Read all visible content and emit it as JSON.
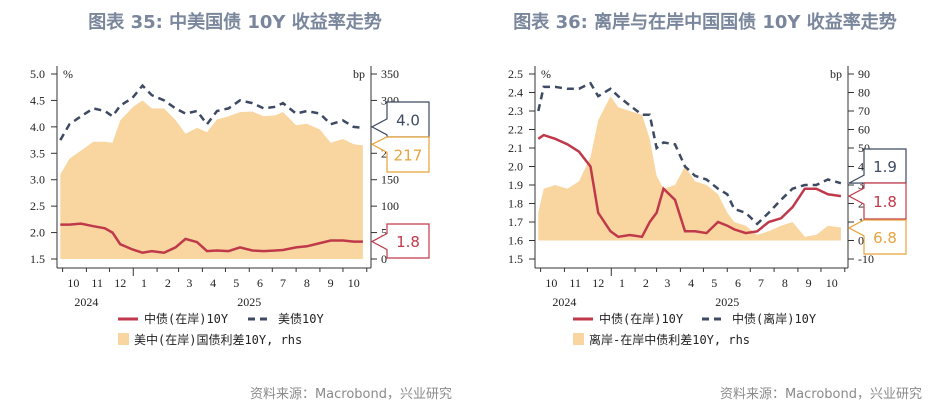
{
  "colors": {
    "onshore": "#c0394b",
    "us": "#3d4a63",
    "offshore": "#3d4a63",
    "spread": "#f9d6a0",
    "spread_label": "#e8a33c",
    "title": "#7a869c"
  },
  "panels": [
    {
      "title": "图表 35: 中美国债 10Y 收益率走势",
      "source": "资料来源：Macrobond，兴业研究"
    },
    {
      "title": "图表 36: 离岸与在岸中国国债 10Y 收益率走势",
      "source": "资料来源：Macrobond，兴业研究"
    }
  ],
  "chart_data": [
    {
      "type": "line+area",
      "left_unit": "%",
      "right_unit": "bp",
      "ylim_left": [
        1.33,
        5.0
      ],
      "yticks_left": [
        "5.0",
        "4.5",
        "4.0",
        "3.5",
        "3.0",
        "2.5",
        "2.0",
        "1.5"
      ],
      "ylim_right": [
        0,
        350
      ],
      "yticks_right": [
        "350",
        "300",
        "250",
        "200",
        "150",
        "100",
        "50",
        "0"
      ],
      "xlim": [
        "2024-09-25",
        "2025-10-31"
      ],
      "month_labels": [
        "10",
        "11",
        "12",
        "1",
        "2",
        "3",
        "4",
        "5",
        "6",
        "7",
        "8",
        "9",
        "10"
      ],
      "year_labels": [
        "2024",
        "2025"
      ],
      "x": [
        "2024-09-28",
        "2024-10-10",
        "2024-10-25",
        "2024-11-10",
        "2024-11-25",
        "2024-12-05",
        "2024-12-15",
        "2024-12-31",
        "2025-01-13",
        "2025-01-25",
        "2025-02-10",
        "2025-02-25",
        "2025-03-10",
        "2025-03-25",
        "2025-04-07",
        "2025-04-20",
        "2025-05-05",
        "2025-05-20",
        "2025-06-05",
        "2025-06-20",
        "2025-07-05",
        "2025-07-15",
        "2025-08-01",
        "2025-08-15",
        "2025-09-01",
        "2025-09-15",
        "2025-10-01",
        "2025-10-15",
        "2025-10-27"
      ],
      "series": [
        {
          "name": "中债(在岸)10Y",
          "axis": "left",
          "style": "solid",
          "values": [
            2.15,
            2.15,
            2.17,
            2.12,
            2.08,
            2.0,
            1.78,
            1.68,
            1.62,
            1.65,
            1.62,
            1.72,
            1.88,
            1.82,
            1.65,
            1.66,
            1.65,
            1.72,
            1.66,
            1.65,
            1.66,
            1.67,
            1.72,
            1.74,
            1.8,
            1.85,
            1.85,
            1.83,
            1.83
          ]
        },
        {
          "name": "美债10Y",
          "axis": "left",
          "style": "dashed",
          "values": [
            3.75,
            4.05,
            4.2,
            4.35,
            4.3,
            4.2,
            4.4,
            4.55,
            4.78,
            4.6,
            4.5,
            4.35,
            4.25,
            4.3,
            4.05,
            4.3,
            4.35,
            4.5,
            4.45,
            4.35,
            4.38,
            4.45,
            4.25,
            4.3,
            4.25,
            4.05,
            4.12,
            4.0,
            3.98
          ]
        },
        {
          "name": "美中(在岸)国债利差10Y, rhs",
          "axis": "right",
          "style": "area",
          "values": [
            160,
            190,
            205,
            222,
            222,
            220,
            262,
            287,
            300,
            285,
            285,
            263,
            237,
            248,
            240,
            264,
            270,
            278,
            279,
            270,
            272,
            278,
            253,
            256,
            245,
            220,
            227,
            217,
            215
          ]
        }
      ],
      "callouts": [
        {
          "label": "4.0",
          "series": 1,
          "axis": "left",
          "value": 4.0
        },
        {
          "label": "217",
          "series": 2,
          "axis": "right",
          "value": 217
        },
        {
          "label": "1.8",
          "series": 0,
          "axis": "left",
          "value": 1.83
        }
      ]
    },
    {
      "type": "line+area",
      "left_unit": "%",
      "right_unit": "bp",
      "ylim_left": [
        1.45,
        2.5
      ],
      "yticks_left": [
        "2.5",
        "2.4",
        "2.3",
        "2.2",
        "2.1",
        "2.0",
        "1.9",
        "1.8",
        "1.7",
        "1.6",
        "1.5"
      ],
      "ylim_right": [
        -15,
        90
      ],
      "yticks_right": [
        "90",
        "80",
        "70",
        "60",
        "50",
        "40",
        "30",
        "20",
        "10",
        "0",
        "-10"
      ],
      "xlim": [
        "2024-09-25",
        "2025-10-31"
      ],
      "month_labels": [
        "10",
        "11",
        "12",
        "1",
        "2",
        "3",
        "4",
        "5",
        "6",
        "7",
        "8",
        "9",
        "10"
      ],
      "year_labels": [
        "2024",
        "2025"
      ],
      "x": [
        "2024-09-28",
        "2024-10-05",
        "2024-10-20",
        "2024-11-05",
        "2024-11-20",
        "2024-12-05",
        "2024-12-15",
        "2024-12-31",
        "2025-01-10",
        "2025-01-25",
        "2025-02-10",
        "2025-02-20",
        "2025-03-01",
        "2025-03-10",
        "2025-03-25",
        "2025-04-07",
        "2025-04-20",
        "2025-05-05",
        "2025-05-20",
        "2025-06-01",
        "2025-06-10",
        "2025-06-25",
        "2025-07-10",
        "2025-07-25",
        "2025-08-10",
        "2025-08-25",
        "2025-09-10",
        "2025-09-25",
        "2025-10-10",
        "2025-10-27"
      ],
      "series": [
        {
          "name": "中债(在岸)10Y",
          "axis": "left",
          "style": "solid",
          "values": [
            2.15,
            2.17,
            2.15,
            2.12,
            2.08,
            2.0,
            1.75,
            1.65,
            1.62,
            1.63,
            1.62,
            1.7,
            1.75,
            1.88,
            1.82,
            1.65,
            1.65,
            1.64,
            1.7,
            1.68,
            1.66,
            1.64,
            1.65,
            1.7,
            1.72,
            1.78,
            1.88,
            1.88,
            1.85,
            1.84
          ]
        },
        {
          "name": "中债(离岸)10Y",
          "axis": "left",
          "style": "dashed",
          "values": [
            2.3,
            2.43,
            2.43,
            2.42,
            2.42,
            2.45,
            2.38,
            2.42,
            2.38,
            2.33,
            2.28,
            2.28,
            2.1,
            2.13,
            2.12,
            2.0,
            1.95,
            1.93,
            1.88,
            1.85,
            1.77,
            1.75,
            1.69,
            1.75,
            1.82,
            1.88,
            1.9,
            1.9,
            1.93,
            1.91
          ]
        },
        {
          "name": "离岸-在岸中债利差10Y, rhs",
          "axis": "right",
          "style": "area",
          "values": [
            15,
            28,
            30,
            28,
            32,
            45,
            65,
            78,
            72,
            70,
            68,
            55,
            35,
            28,
            30,
            40,
            32,
            30,
            25,
            15,
            10,
            8,
            3,
            5,
            8,
            10,
            2,
            3,
            8,
            7
          ]
        }
      ],
      "callouts": [
        {
          "label": "1.9",
          "series": 1,
          "axis": "left",
          "value": 1.91
        },
        {
          "label": "1.8",
          "series": 0,
          "axis": "left",
          "value": 1.84
        },
        {
          "label": "6.8",
          "series": 2,
          "axis": "right",
          "value": 6.8
        }
      ]
    }
  ]
}
